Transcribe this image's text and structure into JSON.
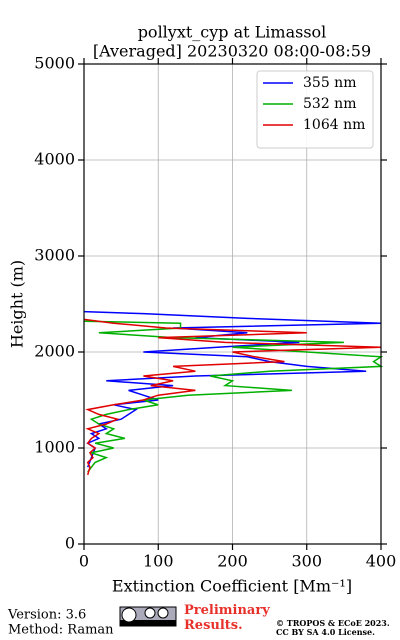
{
  "chart_data": {
    "type": "line",
    "title": "pollyxt_cyp at Limassol",
    "subtitle": "[Averaged] 20230320 08:00-08:59",
    "xlabel": "Extinction Coefficient [Mm⁻¹]",
    "ylabel": "Height (m)",
    "xlim": [
      0,
      400
    ],
    "xticks": [
      0,
      100,
      200,
      300,
      400
    ],
    "ylim": [
      0,
      5000
    ],
    "yticks": [
      0,
      1000,
      2000,
      3000,
      4000,
      5000
    ],
    "grid": true,
    "legend": "upper-right",
    "series": [
      {
        "name": "355 nm",
        "color": "#0000ff",
        "x": [
          5,
          10,
          15,
          5,
          20,
          10,
          30,
          20,
          50,
          60,
          70,
          40,
          100,
          80,
          60,
          120,
          30,
          150,
          380,
          300,
          250,
          220,
          80,
          180,
          290,
          150,
          220,
          120,
          400,
          220,
          80,
          0
        ],
        "y": [
          800,
          900,
          1000,
          1050,
          1100,
          1150,
          1200,
          1250,
          1300,
          1350,
          1400,
          1450,
          1500,
          1550,
          1600,
          1650,
          1700,
          1750,
          1800,
          1850,
          1900,
          1950,
          2000,
          2050,
          2100,
          2150,
          2200,
          2250,
          2300,
          2350,
          2400,
          2420
        ]
      },
      {
        "name": "532 nm",
        "color": "#00b000",
        "x": [
          5,
          10,
          15,
          30,
          10,
          40,
          15,
          55,
          30,
          40,
          20,
          10,
          30,
          60,
          100,
          80,
          140,
          280,
          190,
          200,
          170,
          250,
          400,
          390,
          400,
          300,
          200,
          350,
          120,
          20,
          130,
          130,
          0
        ],
        "y": [
          750,
          800,
          850,
          900,
          950,
          1000,
          1050,
          1100,
          1150,
          1200,
          1250,
          1300,
          1350,
          1400,
          1450,
          1500,
          1550,
          1600,
          1650,
          1700,
          1750,
          1800,
          1850,
          1900,
          1950,
          2000,
          2050,
          2100,
          2150,
          2200,
          2250,
          2300,
          2320
        ]
      },
      {
        "name": "1064 nm",
        "color": "#e00000",
        "x": [
          5,
          8,
          5,
          12,
          8,
          15,
          5,
          10,
          20,
          5,
          30,
          45,
          20,
          5,
          40,
          80,
          100,
          150,
          90,
          120,
          80,
          150,
          120,
          270,
          230,
          200,
          400,
          190,
          100,
          300,
          110,
          40,
          0
        ],
        "y": [
          720,
          800,
          850,
          900,
          950,
          1000,
          1050,
          1100,
          1150,
          1200,
          1250,
          1300,
          1350,
          1400,
          1450,
          1500,
          1550,
          1600,
          1650,
          1700,
          1750,
          1800,
          1850,
          1900,
          1950,
          2000,
          2050,
          2100,
          2150,
          2200,
          2250,
          2300,
          2340
        ]
      }
    ]
  },
  "footer": {
    "version": "Version: 3.6",
    "method": "Method: Raman",
    "notice": "Preliminary Results.",
    "copyright": "© TROPOS & ECoE 2023.",
    "license": "CC BY SA 4.0 License."
  }
}
